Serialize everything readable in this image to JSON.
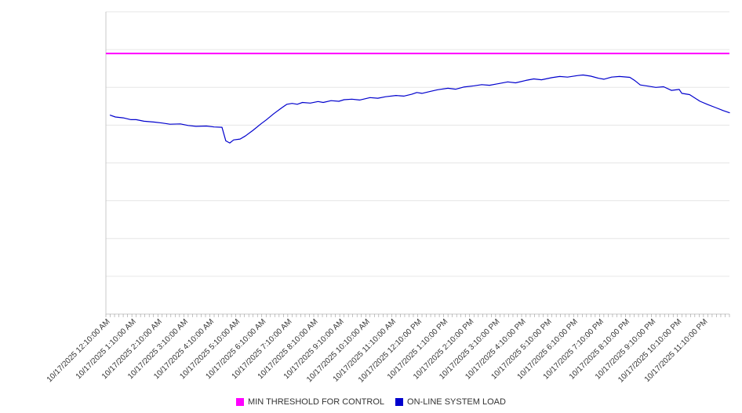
{
  "page": {
    "background_color": "#ffffff",
    "text_color": "#333333"
  },
  "chart_data": {
    "type": "line",
    "title": "",
    "xlabel": "",
    "ylabel": "",
    "x_axis": {
      "label_rotation_deg": -45,
      "tick_labels": [
        "10/17/2025 12:10:00 AM",
        "10/17/2025 1:10:00 AM",
        "10/17/2025 2:10:00 AM",
        "10/17/2025 3:10:00 AM",
        "10/17/2025 4:10:00 AM",
        "10/17/2025 5:10:00 AM",
        "10/17/2025 6:10:00 AM",
        "10/17/2025 7:10:00 AM",
        "10/17/2025 8:10:00 AM",
        "10/17/2025 9:10:00 AM",
        "10/17/2025 10:10:00 AM",
        "10/17/2025 11:10:00 AM",
        "10/17/2025 12:10:00 PM",
        "10/17/2025 1:10:00 PM",
        "10/17/2025 2:10:00 PM",
        "10/17/2025 3:10:00 PM",
        "10/17/2025 4:10:00 PM",
        "10/17/2025 5:10:00 PM",
        "10/17/2025 6:10:00 PM",
        "10/17/2025 7:10:00 PM",
        "10/17/2025 8:10:00 PM",
        "10/17/2025 9:10:00 PM",
        "10/17/2025 10:10:00 PM",
        "10/17/2025 11:10:00 PM"
      ]
    },
    "y_axis": {
      "tick_labels_visible": false,
      "ylim": [
        0,
        100
      ],
      "gridline_values": [
        0,
        12.5,
        25,
        37.5,
        50,
        62.5,
        75,
        87.5,
        100
      ],
      "grid": "horizontal-only"
    },
    "series": [
      {
        "name": "MIN THRESHOLD FOR CONTROL",
        "color": "#ff00ff",
        "style": "constant-horizontal-line",
        "value": 86.2
      },
      {
        "name": "ON-LINE SYSTEM LOAD",
        "color": "#0000cd",
        "hourly_values": [
          65.8,
          64.3,
          63.2,
          62.4,
          61.9,
          57.9,
          64.2,
          69.7,
          70.3,
          70.9,
          71.6,
          72.3,
          73.0,
          74.7,
          75.5,
          76.3,
          77.3,
          78.2,
          78.9,
          77.7,
          78.3,
          75.0,
          73.0,
          69.3
        ],
        "points": [
          [
            0,
            65.8
          ],
          [
            0.2,
            65.2
          ],
          [
            0.5,
            64.9
          ],
          [
            0.8,
            64.3
          ],
          [
            1,
            64.3
          ],
          [
            1.3,
            63.8
          ],
          [
            1.7,
            63.5
          ],
          [
            2,
            63.2
          ],
          [
            2.3,
            62.8
          ],
          [
            2.7,
            62.9
          ],
          [
            3,
            62.4
          ],
          [
            3.3,
            62.1
          ],
          [
            3.7,
            62.2
          ],
          [
            4,
            61.9
          ],
          [
            4.3,
            61.8
          ],
          [
            4.45,
            57.3
          ],
          [
            4.6,
            56.6
          ],
          [
            4.75,
            57.6
          ],
          [
            5,
            57.9
          ],
          [
            5.2,
            58.9
          ],
          [
            5.5,
            60.8
          ],
          [
            5.8,
            62.9
          ],
          [
            6,
            64.2
          ],
          [
            6.3,
            66.3
          ],
          [
            6.6,
            68.2
          ],
          [
            6.8,
            69.4
          ],
          [
            7,
            69.7
          ],
          [
            7.2,
            69.4
          ],
          [
            7.4,
            70.0
          ],
          [
            7.7,
            69.8
          ],
          [
            8,
            70.3
          ],
          [
            8.2,
            70.0
          ],
          [
            8.5,
            70.6
          ],
          [
            8.8,
            70.4
          ],
          [
            9,
            70.9
          ],
          [
            9.3,
            71.1
          ],
          [
            9.6,
            70.8
          ],
          [
            10,
            71.6
          ],
          [
            10.3,
            71.4
          ],
          [
            10.6,
            71.9
          ],
          [
            11,
            72.3
          ],
          [
            11.3,
            72.1
          ],
          [
            11.6,
            72.7
          ],
          [
            11.8,
            73.3
          ],
          [
            12,
            73.0
          ],
          [
            12.3,
            73.6
          ],
          [
            12.6,
            74.2
          ],
          [
            13,
            74.7
          ],
          [
            13.3,
            74.4
          ],
          [
            13.6,
            75.1
          ],
          [
            14,
            75.5
          ],
          [
            14.3,
            75.9
          ],
          [
            14.6,
            75.7
          ],
          [
            15,
            76.3
          ],
          [
            15.3,
            76.8
          ],
          [
            15.6,
            76.5
          ],
          [
            16,
            77.3
          ],
          [
            16.3,
            77.8
          ],
          [
            16.6,
            77.5
          ],
          [
            17,
            78.2
          ],
          [
            17.3,
            78.6
          ],
          [
            17.6,
            78.4
          ],
          [
            18,
            78.9
          ],
          [
            18.2,
            79.1
          ],
          [
            18.5,
            78.7
          ],
          [
            18.8,
            78.0
          ],
          [
            19,
            77.7
          ],
          [
            19.3,
            78.4
          ],
          [
            19.6,
            78.6
          ],
          [
            20,
            78.3
          ],
          [
            20.2,
            77.2
          ],
          [
            20.4,
            75.8
          ],
          [
            20.7,
            75.4
          ],
          [
            21,
            75.0
          ],
          [
            21.3,
            75.2
          ],
          [
            21.6,
            74.0
          ],
          [
            21.9,
            74.3
          ],
          [
            22,
            73.0
          ],
          [
            22.3,
            72.6
          ],
          [
            22.7,
            70.4
          ],
          [
            23,
            69.3
          ],
          [
            23.3,
            68.3
          ],
          [
            23.6,
            67.3
          ],
          [
            23.85,
            66.6
          ]
        ]
      }
    ],
    "legend": {
      "position": "bottom-center",
      "items": [
        {
          "label": "MIN THRESHOLD FOR CONTROL",
          "color": "#ff00ff"
        },
        {
          "label": "ON-LINE SYSTEM LOAD",
          "color": "#0000cd"
        }
      ]
    },
    "colors": {
      "gridline": "#e6e6e6",
      "axis_line": "#c8c8c8",
      "tick": "#999999",
      "label_text": "#333333"
    }
  }
}
